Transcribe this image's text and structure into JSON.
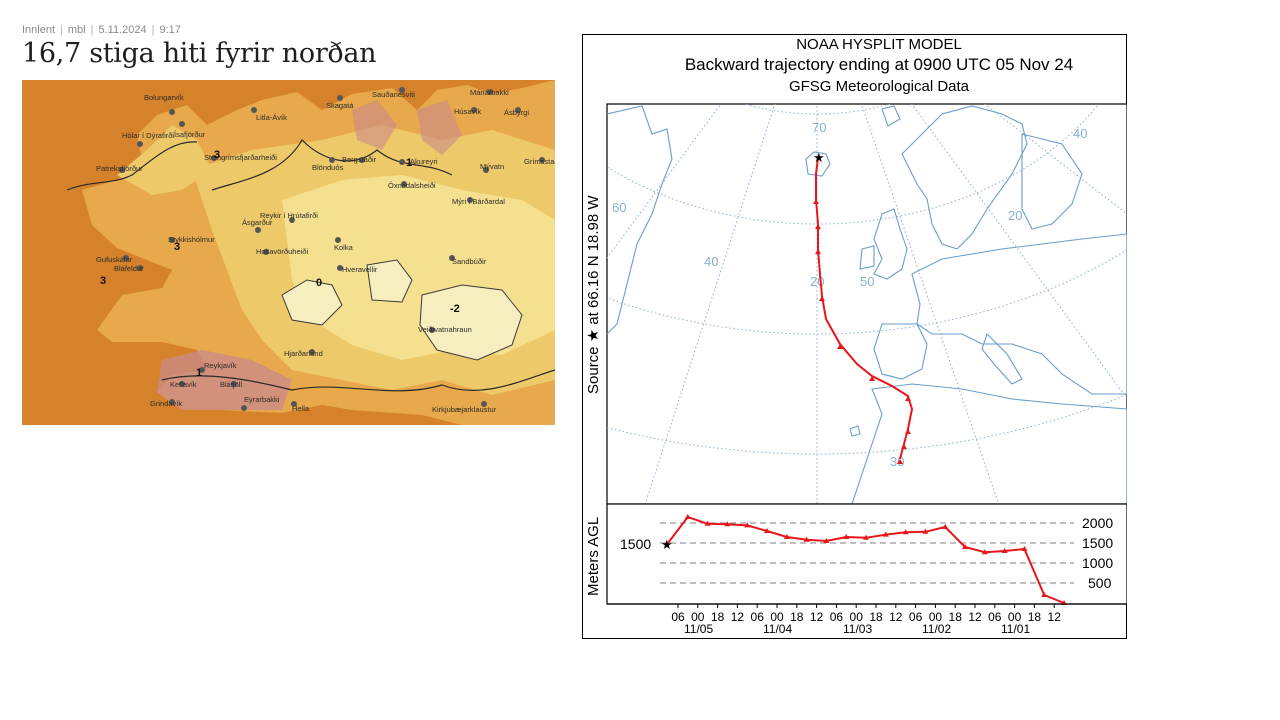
{
  "article": {
    "category": "Innlent",
    "source": "mbl",
    "date": "5.11.2024",
    "time": "9:17",
    "headline": "16,7 stiga hiti fyrir norðan"
  },
  "map": {
    "colors": {
      "sea": "#d6822a",
      "lowland": "#e7a94b",
      "mid": "#eec96a",
      "high": "#f4e08f",
      "ice": "#f7eec0",
      "urban": "#c98a8a"
    },
    "places": [
      "Bolungarvík",
      "Ísafjörður",
      "Litla-Ávík",
      "Hólar í Dýrafirði",
      "Patreksfjörður",
      "Steingrímsfjarðarheiði",
      "Skagatá",
      "Sauðanesviti",
      "Mánárbakki",
      "Húsavík",
      "Ásbyrgi",
      "Grímsstaðir",
      "Blönduós",
      "Bergstaðir",
      "Akureyri",
      "Mývatn",
      "Öxnadalsheiði",
      "Ásgarður",
      "Reykir í Hrútafirði",
      "Kolka",
      "Mýri í Bárðardal",
      "Stykkishólmur",
      "Holtavörðuheiði",
      "Sandbúðir",
      "Gufuskálar",
      "Bláfeldur",
      "Hveravellir",
      "Veiðivatnahraun",
      "Hjarðarland",
      "Reykjavík",
      "Keflavík",
      "Bláfjöll",
      "Grindavík",
      "Eyrarbakki",
      "Hella",
      "Kirkjubæjarklaustur"
    ],
    "isotherm_labels": [
      "3",
      "3",
      "1",
      "0",
      "-2",
      "3",
      "1"
    ]
  },
  "hysplit": {
    "title_line1": "NOAA HYSPLIT MODEL",
    "title_line2": "Backward trajectory ending at 0900 UTC 05 Nov 24",
    "title_line3": "GFSG Meteorological Data",
    "source_label": "Source ★  at   66.16 N   18.98 W",
    "yaxis_label": "Meters AGL",
    "source_height_label": "1500",
    "colors": {
      "trajectory": "#e8161b",
      "coast": "#6a9ccc",
      "grid": "#8aaed4"
    },
    "map_grid_labels": [
      "70",
      "60",
      "40",
      "20",
      "50",
      "30",
      "40",
      "20"
    ],
    "height_ticks": [
      "2000",
      "1500",
      "1000",
      "500"
    ],
    "time_ticks": [
      "06",
      "00",
      "18",
      "12",
      "06",
      "00",
      "18",
      "12",
      "06",
      "00",
      "18",
      "12",
      "06",
      "00",
      "18",
      "12",
      "06",
      "00",
      "18",
      "12"
    ],
    "date_labels": [
      "11/05",
      "11/04",
      "11/03",
      "11/02",
      "11/01"
    ]
  },
  "chart_data": {
    "type": "line",
    "title": "",
    "xlabel": "",
    "ylabel": "Meters AGL",
    "ylim": [
      0,
      2000
    ],
    "x": [
      "11/05 09",
      "11/05 06",
      "11/05 00",
      "11/04 18",
      "11/04 12",
      "11/04 06",
      "11/04 00",
      "11/03 18",
      "11/03 12",
      "11/03 06",
      "11/03 00",
      "11/02 18",
      "11/02 12",
      "11/02 06",
      "11/02 00",
      "11/01 18",
      "11/01 12",
      "11/01 06",
      "11/01 00",
      "10/31 18",
      "10/31 12"
    ],
    "series": [
      {
        "values": [
          1500,
          2150,
          1980,
          1970,
          1940,
          1800,
          1650,
          1580,
          1550,
          1650,
          1630,
          1710,
          1770,
          1780,
          1900,
          1400,
          1270,
          1300,
          1350,
          200,
          0
        ]
      }
    ]
  }
}
